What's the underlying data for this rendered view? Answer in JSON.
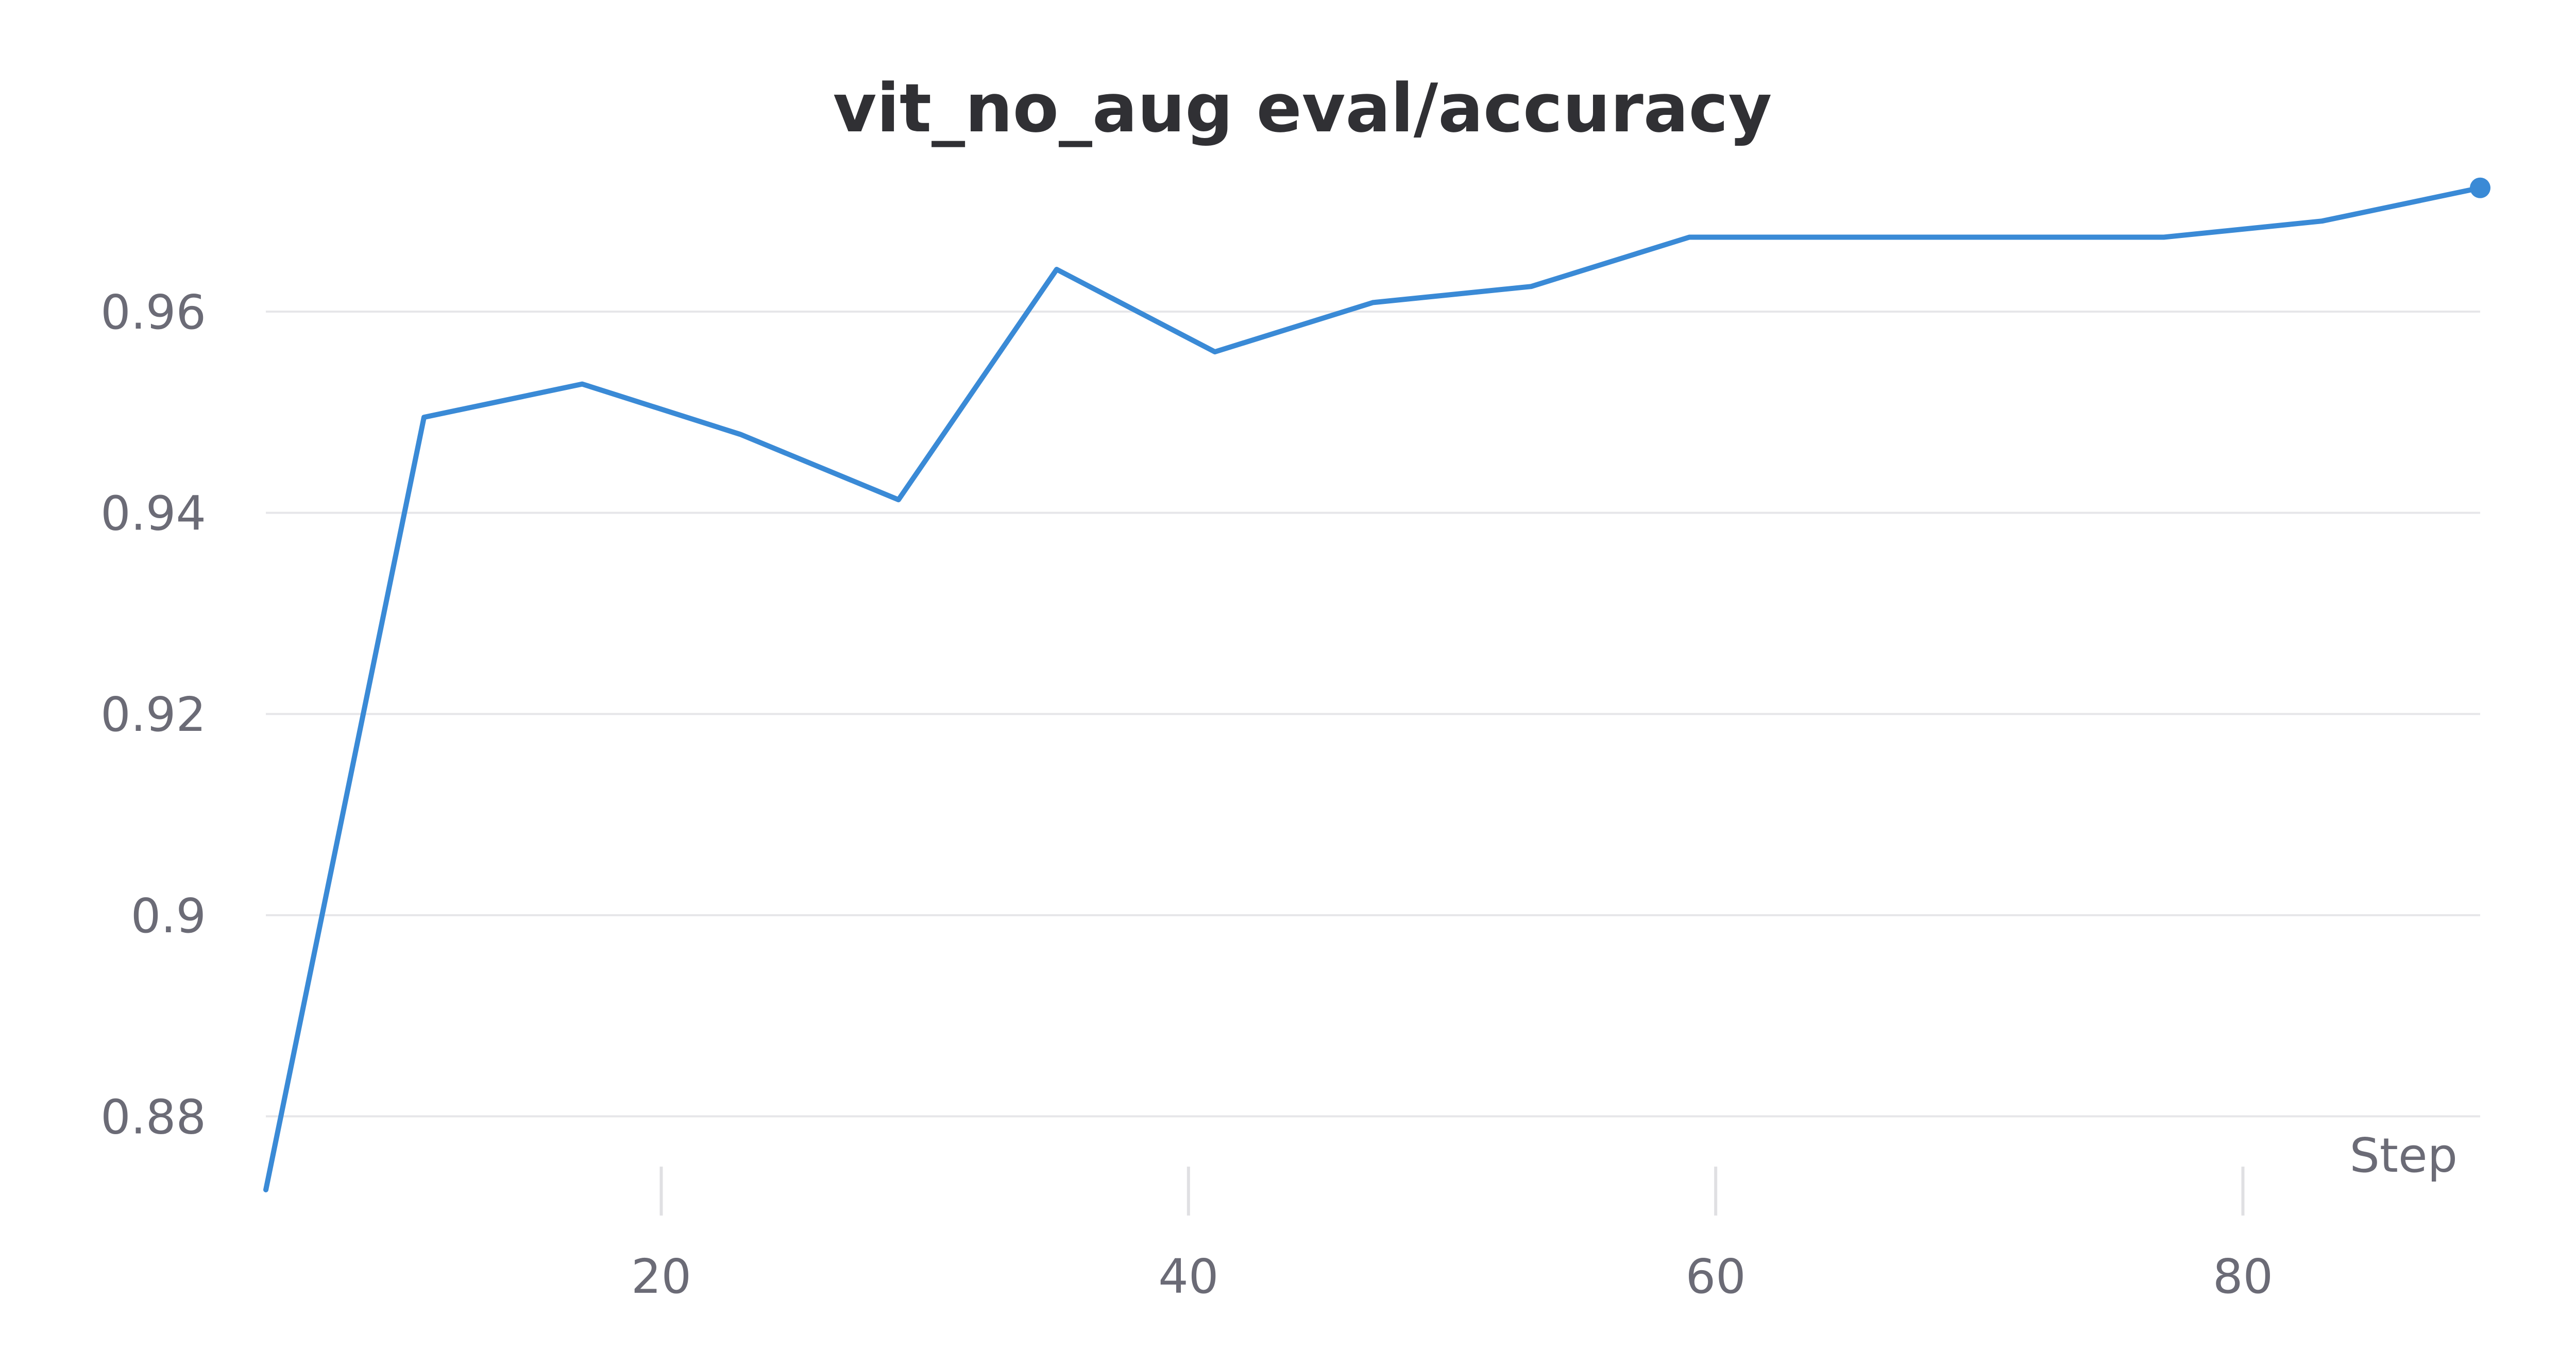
{
  "chart_data": {
    "type": "line",
    "title": "vit_no_aug eval/accuracy",
    "xlabel": "Step",
    "ylabel": "",
    "xlim": [
      5,
      89
    ],
    "ylim": [
      0.8727,
      0.9728
    ],
    "x_ticks": [
      20,
      40,
      60,
      80
    ],
    "y_ticks": [
      0.88,
      0.9,
      0.92,
      0.94,
      0.96
    ],
    "y_tick_labels": [
      "0.88",
      "0.9",
      "0.92",
      "0.94",
      "0.96"
    ],
    "x_tick_labels": [
      "20",
      "40",
      "60",
      "80"
    ],
    "grid": true,
    "legend": "none",
    "series": [
      {
        "color": "#3a8ad6",
        "x": [
          5,
          11,
          17,
          23,
          29,
          35,
          41,
          47,
          53,
          59,
          65,
          71,
          77,
          83,
          89
        ],
        "y": [
          0.8727,
          0.9495,
          0.9528,
          0.9478,
          0.9413,
          0.9642,
          0.956,
          0.9609,
          0.9625,
          0.9674,
          0.9674,
          0.9674,
          0.9674,
          0.969,
          0.9723
        ]
      }
    ]
  }
}
